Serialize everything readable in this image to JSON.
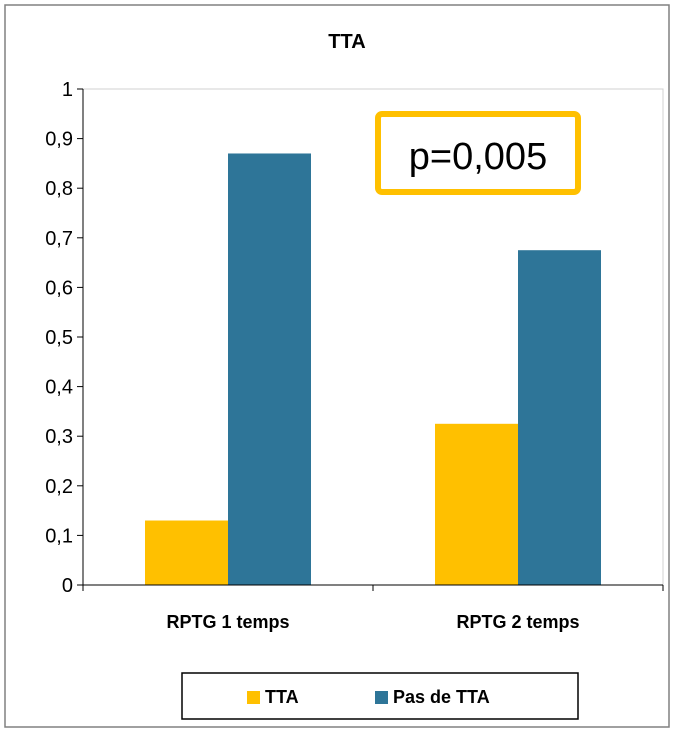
{
  "chart_data": {
    "type": "bar",
    "title": "TTA",
    "categories": [
      "RPTG 1 temps",
      "RPTG 2 temps"
    ],
    "series": [
      {
        "name": "TTA",
        "values": [
          0.13,
          0.325
        ],
        "color": "#FFC000"
      },
      {
        "name": "Pas de TTA",
        "values": [
          0.87,
          0.675
        ],
        "color": "#2E7598"
      }
    ],
    "ylim": [
      0,
      1
    ],
    "yticks": [
      "0",
      "0,1",
      "0,2",
      "0,3",
      "0,4",
      "0,5",
      "0,6",
      "0,7",
      "0,8",
      "0,9",
      "1"
    ],
    "ytick_values": [
      0,
      0.1,
      0.2,
      0.3,
      0.4,
      0.5,
      0.6,
      0.7,
      0.8,
      0.9,
      1
    ],
    "grid": false,
    "legend_position": "bottom",
    "annotation": {
      "text": "p=0,005",
      "border_color": "#FFC000"
    }
  }
}
